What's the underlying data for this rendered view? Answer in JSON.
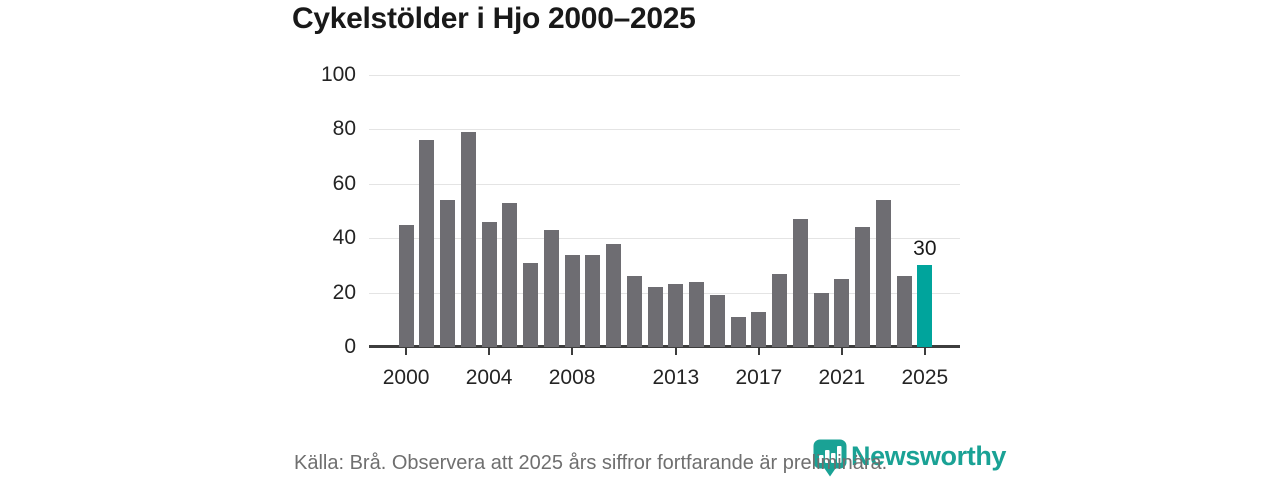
{
  "title": "Cykelstölder i Hjo 2000–2025",
  "footer": {
    "source_note": "Källa: Brå. Observera att 2025 års siffror fortfarande är preliminära."
  },
  "branding": {
    "name": "Newsworthy",
    "logo_icon": "bar-chart-pin-icon",
    "logo_color": "#1aa295"
  },
  "colors": {
    "bar_default": "#6e6d72",
    "bar_highlight": "#00a49c",
    "gridline": "#e4e4e4",
    "axis": "#3d3d3d",
    "axis_label": "#242424",
    "title_text": "#191919",
    "footer_text": "#6f6f6f"
  },
  "chart_data": {
    "type": "bar",
    "title": "Cykelstölder i Hjo 2000–2025",
    "categories": [
      2000,
      2001,
      2002,
      2003,
      2004,
      2005,
      2006,
      2007,
      2008,
      2009,
      2010,
      2011,
      2012,
      2013,
      2014,
      2015,
      2016,
      2017,
      2018,
      2019,
      2020,
      2021,
      2022,
      2023,
      2024,
      2025
    ],
    "values": [
      45,
      76,
      54,
      79,
      46,
      53,
      31,
      43,
      34,
      34,
      38,
      26,
      22,
      23,
      24,
      19,
      11,
      13,
      27,
      47,
      20,
      25,
      44,
      54,
      26,
      30
    ],
    "highlight": {
      "year": 2025,
      "value": 30,
      "label": "30"
    },
    "x_tick_years": [
      2000,
      2004,
      2008,
      2013,
      2017,
      2021,
      2025
    ],
    "x_tick_labels": [
      "2000",
      "2004",
      "2008",
      "2013",
      "2017",
      "2021",
      "2025"
    ],
    "y_ticks": [
      0,
      20,
      40,
      60,
      80,
      100
    ],
    "y_tick_labels": [
      "0",
      "20",
      "40",
      "60",
      "80",
      "100"
    ],
    "ylim": [
      0,
      100
    ],
    "grid": "horizontal",
    "legend": "none"
  }
}
